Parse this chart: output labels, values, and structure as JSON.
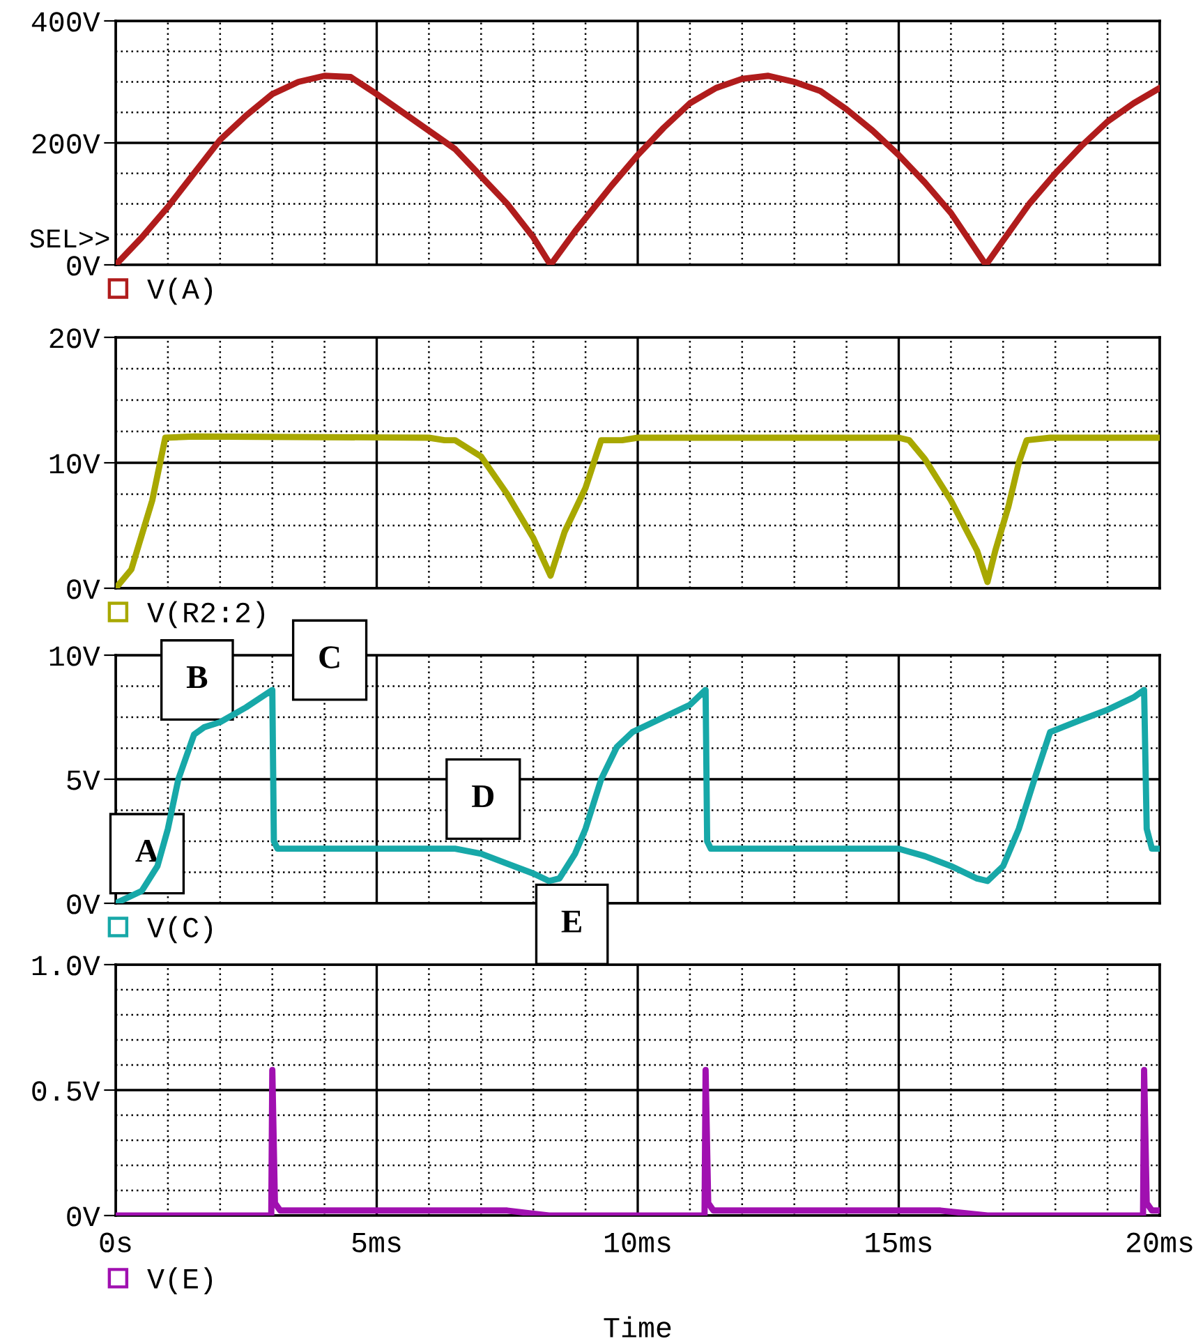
{
  "chart_data": [
    {
      "type": "line",
      "annotations": [
        "SEL>>"
      ],
      "x": [
        0,
        0.5,
        1,
        1.5,
        2,
        2.5,
        3,
        3.5,
        4,
        4.5,
        5,
        5.5,
        6,
        6.5,
        7,
        7.5,
        8,
        8.33,
        8.8,
        9.5,
        10,
        10.5,
        11,
        11.5,
        12,
        12.5,
        13,
        13.5,
        14,
        14.5,
        15,
        15.5,
        16,
        16.67,
        17,
        17.5,
        18,
        18.5,
        19,
        19.5,
        20
      ],
      "series": [
        {
          "name": "V(A)",
          "color": "#b01c1c",
          "values": [
            0,
            45,
            95,
            150,
            205,
            245,
            280,
            300,
            310,
            308,
            280,
            250,
            220,
            190,
            145,
            100,
            45,
            0,
            55,
            130,
            180,
            225,
            265,
            290,
            305,
            310,
            300,
            285,
            255,
            220,
            180,
            135,
            85,
            0,
            40,
            100,
            150,
            195,
            235,
            265,
            290
          ]
        }
      ],
      "xlim": [
        0,
        20
      ],
      "xticks": [
        {
          "value": 0,
          "label": null
        },
        {
          "value": 1,
          "label": null
        },
        {
          "value": 2,
          "label": null
        },
        {
          "value": 3,
          "label": null
        },
        {
          "value": 4,
          "label": null
        },
        {
          "value": 5,
          "label": null
        },
        {
          "value": 6,
          "label": null
        },
        {
          "value": 7,
          "label": null
        },
        {
          "value": 8,
          "label": null
        },
        {
          "value": 9,
          "label": null
        },
        {
          "value": 10,
          "label": null
        },
        {
          "value": 11,
          "label": null
        },
        {
          "value": 12,
          "label": null
        },
        {
          "value": 13,
          "label": null
        },
        {
          "value": 14,
          "label": null
        },
        {
          "value": 15,
          "label": null
        },
        {
          "value": 16,
          "label": null
        },
        {
          "value": 17,
          "label": null
        },
        {
          "value": 18,
          "label": null
        },
        {
          "value": 19,
          "label": null
        },
        {
          "value": 20,
          "label": null
        }
      ],
      "ylim": [
        0,
        400
      ],
      "yticks": [
        {
          "value": 0,
          "label": "0V"
        },
        {
          "value": 50,
          "label": null
        },
        {
          "value": 100,
          "label": null
        },
        {
          "value": 150,
          "label": null
        },
        {
          "value": 200,
          "label": "200V"
        },
        {
          "value": 250,
          "label": null
        },
        {
          "value": 300,
          "label": null
        },
        {
          "value": 350,
          "label": null
        },
        {
          "value": 400,
          "label": "400V"
        }
      ],
      "grid": true,
      "legend": "bottom left",
      "tick_labels": "y",
      "line_style": "solid"
    },
    {
      "type": "line",
      "x": [
        0,
        0.3,
        0.7,
        0.95,
        1.5,
        6,
        6.3,
        6.5,
        7,
        7.5,
        8,
        8.33,
        8.6,
        9,
        9.3,
        9.7,
        10,
        15,
        15.2,
        15.5,
        16,
        16.5,
        16.7,
        16.85,
        17.1,
        17.3,
        17.45,
        17.9,
        20
      ],
      "series": [
        {
          "name": "V(R2:2)",
          "color": "#a8a800",
          "values": [
            0,
            1.5,
            7,
            12,
            12.1,
            12,
            11.8,
            11.8,
            10.5,
            7.5,
            4,
            1,
            4.5,
            8,
            11.8,
            11.8,
            12,
            12,
            11.8,
            10.3,
            7,
            3,
            0.5,
            3,
            6.5,
            10,
            11.8,
            12,
            12
          ]
        }
      ],
      "xlim": [
        0,
        20
      ],
      "xticks": [
        {
          "value": 0,
          "label": null
        },
        {
          "value": 1,
          "label": null
        },
        {
          "value": 2,
          "label": null
        },
        {
          "value": 3,
          "label": null
        },
        {
          "value": 4,
          "label": null
        },
        {
          "value": 5,
          "label": null
        },
        {
          "value": 6,
          "label": null
        },
        {
          "value": 7,
          "label": null
        },
        {
          "value": 8,
          "label": null
        },
        {
          "value": 9,
          "label": null
        },
        {
          "value": 10,
          "label": null
        },
        {
          "value": 11,
          "label": null
        },
        {
          "value": 12,
          "label": null
        },
        {
          "value": 13,
          "label": null
        },
        {
          "value": 14,
          "label": null
        },
        {
          "value": 15,
          "label": null
        },
        {
          "value": 16,
          "label": null
        },
        {
          "value": 17,
          "label": null
        },
        {
          "value": 18,
          "label": null
        },
        {
          "value": 19,
          "label": null
        },
        {
          "value": 20,
          "label": null
        }
      ],
      "ylim": [
        0,
        20
      ],
      "yticks": [
        {
          "value": 0,
          "label": "0V"
        },
        {
          "value": 2.5,
          "label": null
        },
        {
          "value": 5,
          "label": null
        },
        {
          "value": 7.5,
          "label": null
        },
        {
          "value": 10,
          "label": "10V"
        },
        {
          "value": 12.5,
          "label": null
        },
        {
          "value": 15,
          "label": null
        },
        {
          "value": 17.5,
          "label": null
        },
        {
          "value": 20,
          "label": "20V"
        }
      ],
      "grid": true,
      "legend": "bottom left",
      "tick_labels": "y",
      "line_style": "solid"
    },
    {
      "type": "line",
      "annotations": [
        "A",
        "B",
        "C",
        "D",
        "E"
      ],
      "x": [
        0,
        0.5,
        0.8,
        1,
        1.2,
        1.5,
        1.7,
        2,
        2.5,
        3,
        3.03,
        3.1,
        6.5,
        7,
        7.5,
        8,
        8.3,
        8.5,
        8.8,
        9,
        9.3,
        9.6,
        9.9,
        10.5,
        11,
        11.3,
        11.33,
        11.4,
        15,
        15.5,
        16,
        16.5,
        16.7,
        17,
        17.3,
        17.6,
        17.9,
        18.5,
        19,
        19.5,
        19.7,
        19.75,
        19.85,
        20
      ],
      "series": [
        {
          "name": "V(C)",
          "color": "#17a8a8",
          "values": [
            0,
            0.5,
            1.5,
            3,
            5,
            6.8,
            7.1,
            7.3,
            7.9,
            8.6,
            2.5,
            2.2,
            2.2,
            2,
            1.6,
            1.2,
            0.9,
            1.0,
            2,
            3,
            5,
            6.3,
            6.9,
            7.5,
            8,
            8.6,
            2.5,
            2.2,
            2.2,
            1.9,
            1.5,
            1.0,
            0.9,
            1.5,
            3,
            5,
            6.9,
            7.4,
            7.8,
            8.3,
            8.6,
            3,
            2.2,
            2.2
          ]
        }
      ],
      "xlim": [
        0,
        20
      ],
      "xticks": [
        {
          "value": 0,
          "label": null
        },
        {
          "value": 1,
          "label": null
        },
        {
          "value": 2,
          "label": null
        },
        {
          "value": 3,
          "label": null
        },
        {
          "value": 4,
          "label": null
        },
        {
          "value": 5,
          "label": null
        },
        {
          "value": 6,
          "label": null
        },
        {
          "value": 7,
          "label": null
        },
        {
          "value": 8,
          "label": null
        },
        {
          "value": 9,
          "label": null
        },
        {
          "value": 10,
          "label": null
        },
        {
          "value": 11,
          "label": null
        },
        {
          "value": 12,
          "label": null
        },
        {
          "value": 13,
          "label": null
        },
        {
          "value": 14,
          "label": null
        },
        {
          "value": 15,
          "label": null
        },
        {
          "value": 16,
          "label": null
        },
        {
          "value": 17,
          "label": null
        },
        {
          "value": 18,
          "label": null
        },
        {
          "value": 19,
          "label": null
        },
        {
          "value": 20,
          "label": null
        }
      ],
      "ylim": [
        0,
        10
      ],
      "yticks": [
        {
          "value": 0,
          "label": "0V"
        },
        {
          "value": 1.25,
          "label": null
        },
        {
          "value": 2.5,
          "label": null
        },
        {
          "value": 3.75,
          "label": null
        },
        {
          "value": 5,
          "label": "5V"
        },
        {
          "value": 6.25,
          "label": null
        },
        {
          "value": 7.5,
          "label": null
        },
        {
          "value": 8.75,
          "label": null
        },
        {
          "value": 10,
          "label": "10V"
        }
      ],
      "grid": true,
      "legend": "bottom left",
      "tick_labels": "y",
      "line_style": "solid"
    },
    {
      "type": "line",
      "xlabel": "Time",
      "x": [
        0,
        2.98,
        3.0,
        3.05,
        3.15,
        7.5,
        8.3,
        11.28,
        11.3,
        11.35,
        11.45,
        15.8,
        16.7,
        19.68,
        19.7,
        19.75,
        19.85,
        20
      ],
      "series": [
        {
          "name": "V(E)",
          "color": "#a010b0",
          "values": [
            0,
            0,
            0.58,
            0.05,
            0.02,
            0.02,
            0,
            0,
            0.58,
            0.05,
            0.02,
            0.02,
            0,
            0,
            0.58,
            0.05,
            0.02,
            0.02
          ]
        }
      ],
      "xlim": [
        0,
        20
      ],
      "xticks": [
        {
          "value": 0,
          "label": "0s"
        },
        {
          "value": 1,
          "label": null
        },
        {
          "value": 2,
          "label": null
        },
        {
          "value": 3,
          "label": null
        },
        {
          "value": 4,
          "label": null
        },
        {
          "value": 5,
          "label": "5ms"
        },
        {
          "value": 6,
          "label": null
        },
        {
          "value": 7,
          "label": null
        },
        {
          "value": 8,
          "label": null
        },
        {
          "value": 9,
          "label": null
        },
        {
          "value": 10,
          "label": "10ms"
        },
        {
          "value": 11,
          "label": null
        },
        {
          "value": 12,
          "label": null
        },
        {
          "value": 13,
          "label": null
        },
        {
          "value": 14,
          "label": null
        },
        {
          "value": 15,
          "label": "15ms"
        },
        {
          "value": 16,
          "label": null
        },
        {
          "value": 17,
          "label": null
        },
        {
          "value": 18,
          "label": null
        },
        {
          "value": 19,
          "label": null
        },
        {
          "value": 20,
          "label": "20ms"
        }
      ],
      "ylim": [
        0,
        1.0
      ],
      "yticks": [
        {
          "value": 0,
          "label": "0V"
        },
        {
          "value": 0.1,
          "label": null
        },
        {
          "value": 0.2,
          "label": null
        },
        {
          "value": 0.3,
          "label": null
        },
        {
          "value": 0.4,
          "label": null
        },
        {
          "value": 0.5,
          "label": "0.5V"
        },
        {
          "value": 0.6,
          "label": null
        },
        {
          "value": 0.7,
          "label": null
        },
        {
          "value": 0.8,
          "label": null
        },
        {
          "value": 0.9,
          "label": null
        },
        {
          "value": 1.0,
          "label": "1.0V"
        }
      ],
      "grid": true,
      "legend": "bottom left",
      "line_style": "solid"
    }
  ]
}
